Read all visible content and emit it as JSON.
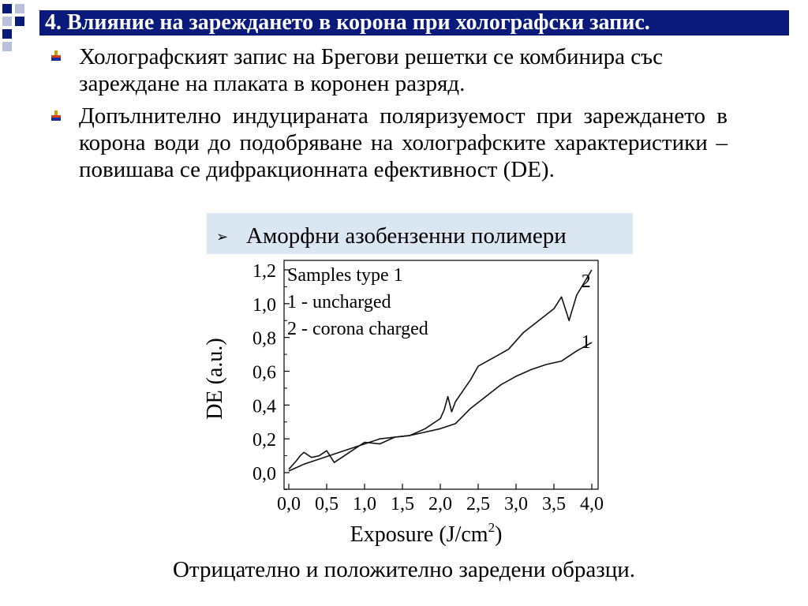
{
  "header": {
    "title": "4. Влияние на зареждането в корона при холографски запис."
  },
  "bullets": [
    {
      "text": "Холографският запис на Брегови решетки се комбинира със зареждане на плаката в коронен разряд."
    },
    {
      "text": "Допълнително индуцираната поляризуемост при зареждането в корона води до подобряване на холографските характеристики – повишава се дифракционната ефективност (DE)."
    }
  ],
  "sub_bullet": {
    "text": "Аморфни азобензенни полимери"
  },
  "caption": "Отрицателно и положително заредени образци.",
  "colors": {
    "title_bg": "#0a1a7a",
    "highlight_bg": "#dbe6f3"
  },
  "chart_data": {
    "type": "line",
    "ylabel": "DE (a.u.)",
    "xlabel_main": "Exposure (J/cm",
    "xlabel_sup": "2",
    "xlabel_end": ")",
    "xlim": [
      0.0,
      4.0
    ],
    "ylim": [
      0.0,
      1.2
    ],
    "xticks": [
      "0,0",
      "0,5",
      "1,0",
      "1,5",
      "2,0",
      "2,5",
      "3,0",
      "3,5",
      "4,0"
    ],
    "yticks": [
      "0,0",
      "0,2",
      "0,4",
      "0,6",
      "0,8",
      "1,0",
      "1,2"
    ],
    "legend": [
      "Samples type 1",
      "1 - uncharged",
      "2 - corona charged"
    ],
    "series": [
      {
        "name": "1",
        "x": [
          0.0,
          0.2,
          0.4,
          0.6,
          0.8,
          1.0,
          1.2,
          1.4,
          1.6,
          1.8,
          2.0,
          2.2,
          2.4,
          2.6,
          2.8,
          3.0,
          3.2,
          3.4,
          3.6,
          3.8,
          4.0
        ],
        "y": [
          0.01,
          0.05,
          0.08,
          0.11,
          0.14,
          0.17,
          0.2,
          0.21,
          0.22,
          0.24,
          0.26,
          0.29,
          0.38,
          0.45,
          0.52,
          0.57,
          0.61,
          0.64,
          0.66,
          0.72,
          0.77
        ]
      },
      {
        "name": "2",
        "x": [
          0.0,
          0.1,
          0.15,
          0.2,
          0.3,
          0.4,
          0.5,
          0.6,
          0.7,
          0.8,
          1.0,
          1.2,
          1.4,
          1.6,
          1.8,
          2.0,
          2.05,
          2.1,
          2.15,
          2.2,
          2.4,
          2.5,
          2.7,
          2.9,
          3.1,
          3.3,
          3.5,
          3.6,
          3.7,
          3.8,
          4.0
        ],
        "y": [
          0.02,
          0.07,
          0.1,
          0.12,
          0.09,
          0.1,
          0.13,
          0.06,
          0.09,
          0.12,
          0.18,
          0.17,
          0.21,
          0.22,
          0.26,
          0.32,
          0.37,
          0.45,
          0.36,
          0.42,
          0.55,
          0.63,
          0.68,
          0.73,
          0.83,
          0.9,
          0.97,
          1.04,
          0.9,
          1.05,
          1.2
        ]
      }
    ],
    "curve_labels": [
      {
        "series": "2",
        "text": "2",
        "x": 3.8,
        "y": 1.07
      },
      {
        "series": "1",
        "text": "1",
        "x": 3.8,
        "y": 0.71
      }
    ]
  }
}
